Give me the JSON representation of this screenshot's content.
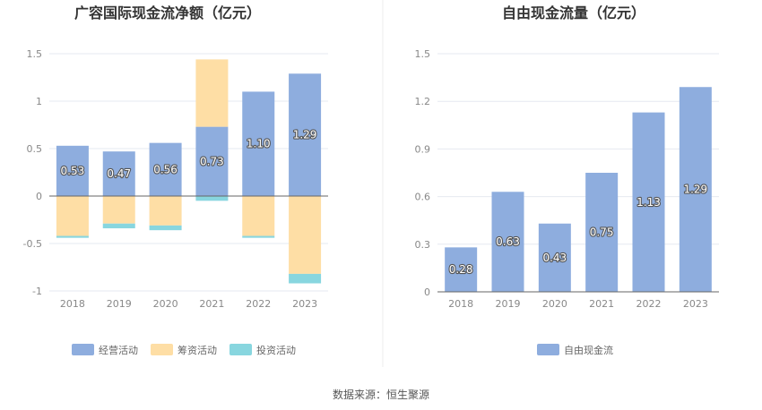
{
  "colors": {
    "operating": "#8eadde",
    "financing": "#fedea5",
    "investing": "#88d6df",
    "free_cash_flow": "#8eadde",
    "grid": "#e6e9f0",
    "axis": "#666666",
    "divider": "#eeeeee"
  },
  "chart_data": [
    {
      "type": "bar",
      "stacked": true,
      "title": "广容国际现金流净额（亿元）",
      "categories": [
        "2018",
        "2019",
        "2020",
        "2021",
        "2022",
        "2023"
      ],
      "ylim": [
        -1,
        1.5
      ],
      "yticks": [
        "1.5",
        "1",
        "0.5",
        "0",
        "-0.5",
        "-1"
      ],
      "ytick_values": [
        1.5,
        1,
        0.5,
        0,
        -0.5,
        -1
      ],
      "grid": true,
      "legend_position": "bottom",
      "series": [
        {
          "name": "经营活动",
          "values": [
            0.53,
            0.47,
            0.56,
            0.73,
            1.1,
            1.29
          ],
          "labels": [
            "0.53",
            "0.47",
            "0.56",
            "0.73",
            "1.10",
            "1.29"
          ]
        },
        {
          "name": "筹资活动",
          "values": [
            -0.42,
            -0.29,
            -0.31,
            0.71,
            -0.42,
            -0.82
          ]
        },
        {
          "name": "投资活动",
          "values": [
            -0.02,
            -0.05,
            -0.05,
            -0.05,
            -0.02,
            -0.1
          ]
        }
      ]
    },
    {
      "type": "bar",
      "title": "自由现金流量（亿元）",
      "categories": [
        "2018",
        "2019",
        "2020",
        "2021",
        "2022",
        "2023"
      ],
      "ylim": [
        0,
        1.5
      ],
      "yticks": [
        "1.5",
        "1.2",
        "0.9",
        "0.6",
        "0.3",
        "0"
      ],
      "ytick_values": [
        1.5,
        1.2,
        0.9,
        0.6,
        0.3,
        0
      ],
      "grid": true,
      "legend_position": "bottom",
      "series": [
        {
          "name": "自由现金流",
          "values": [
            0.28,
            0.63,
            0.43,
            0.75,
            1.13,
            1.29
          ],
          "labels": [
            "0.28",
            "0.63",
            "0.43",
            "0.75",
            "1.13",
            "1.29"
          ]
        }
      ]
    }
  ],
  "footer": {
    "source": "数据来源：恒生聚源"
  }
}
